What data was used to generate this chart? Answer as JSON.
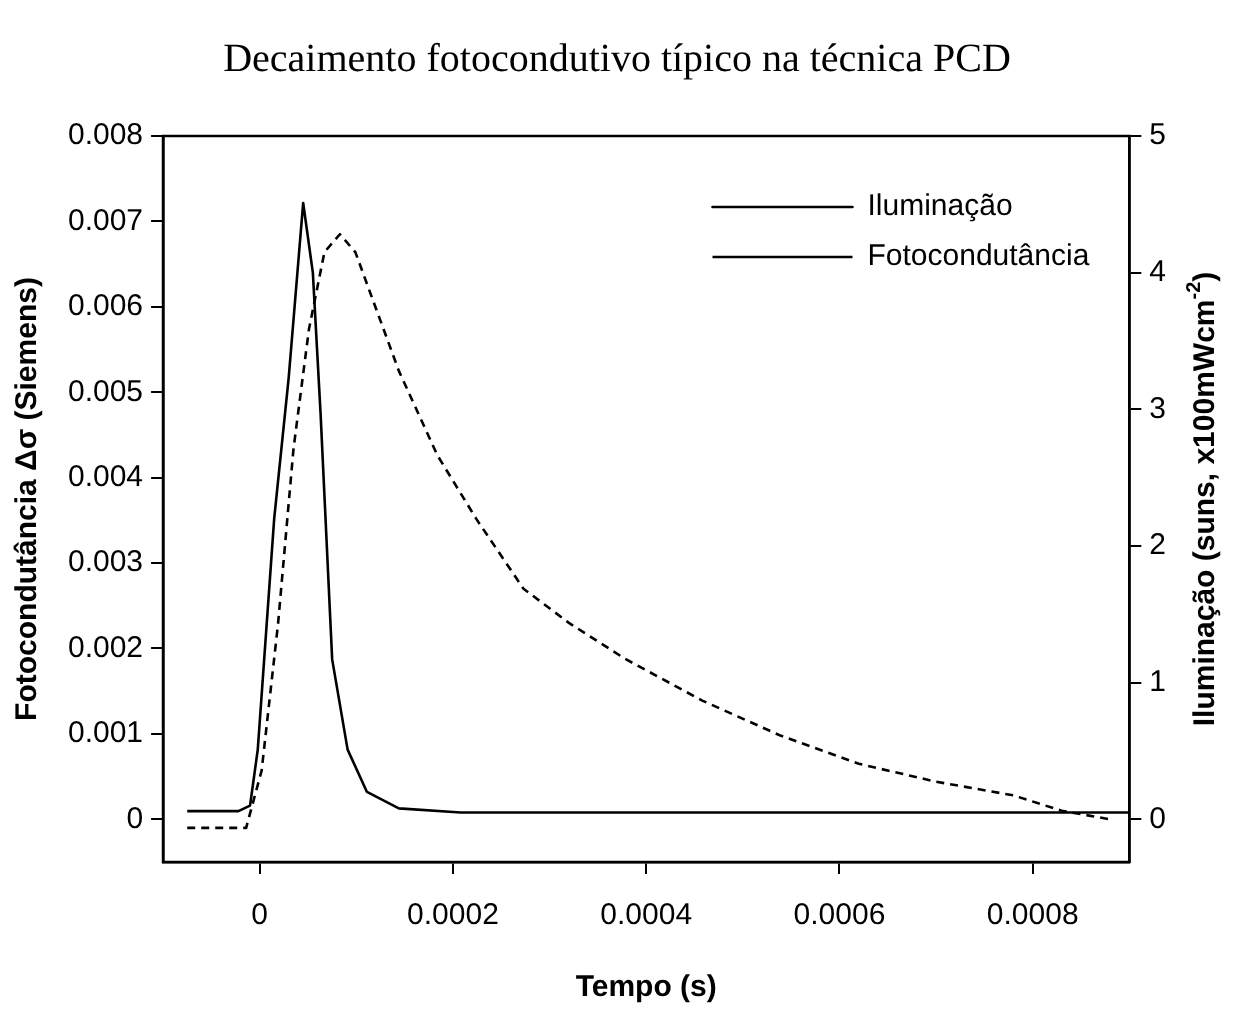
{
  "chart_data": {
    "type": "line",
    "title": "Decaimento fotocondutivo típico na técnica PCD",
    "xlabel": "Tempo (s)",
    "ylabel": "Fotocondutância Δσ (Siemens)",
    "y2label": "Iluminação (suns, x100mWcm$^{-2}$)",
    "xlim": [
      -0.0001,
      0.0009
    ],
    "xticks": [
      0,
      0.0002,
      0.0004,
      0.0006,
      0.0008
    ],
    "ylim": [
      -0.0005,
      0.008
    ],
    "yticks": [
      0,
      0.001,
      0.002,
      0.003,
      0.004,
      0.005,
      0.006,
      0.007,
      0.008
    ],
    "y2lim": [
      -0.3125,
      5
    ],
    "y2ticks": [
      0,
      1,
      2,
      3,
      4,
      5
    ],
    "grid": false,
    "legend": "top right",
    "marker": "none",
    "series": [
      {
        "name": "Iluminação",
        "color": "#000000",
        "axis": "y2",
        "line_style": "solid",
        "x": [
          -7.5e-05,
          -2.2e-05,
          -1e-05,
          -2e-06,
          1.5e-05,
          3e-05,
          4.5e-05,
          5.5e-05,
          6.3e-05,
          7.5e-05,
          9.1e-05,
          0.000111,
          0.000144,
          0.000208,
          0.0009
        ],
        "values": [
          0.06,
          0.06,
          0.1,
          0.51,
          2.2,
          3.23,
          4.51,
          4.0,
          2.97,
          1.17,
          0.51,
          0.2,
          0.08,
          0.05,
          0.05
        ]
      },
      {
        "name": "Fotocondutância",
        "color": "#000000",
        "axis": "y",
        "line_style": "dashed",
        "x": [
          -7.5e-05,
          -1.4e-05,
          2e-06,
          1.9e-05,
          3.5e-05,
          5.1e-05,
          6.7e-05,
          8.3e-05,
          9.9e-05,
          0.000144,
          0.000184,
          0.000224,
          0.000273,
          0.00032,
          0.000378,
          0.000458,
          0.000539,
          0.00062,
          0.0007,
          0.00078,
          0.00083,
          0.00088
        ],
        "values": [
          -0.0001,
          -0.0001,
          0.00057,
          0.00229,
          0.00434,
          0.00574,
          0.00664,
          0.00685,
          0.00664,
          0.00525,
          0.00426,
          0.00352,
          0.0027,
          0.0023,
          0.00188,
          0.00139,
          0.00098,
          0.00065,
          0.00044,
          0.00028,
          0.0001,
          0
        ]
      }
    ]
  }
}
